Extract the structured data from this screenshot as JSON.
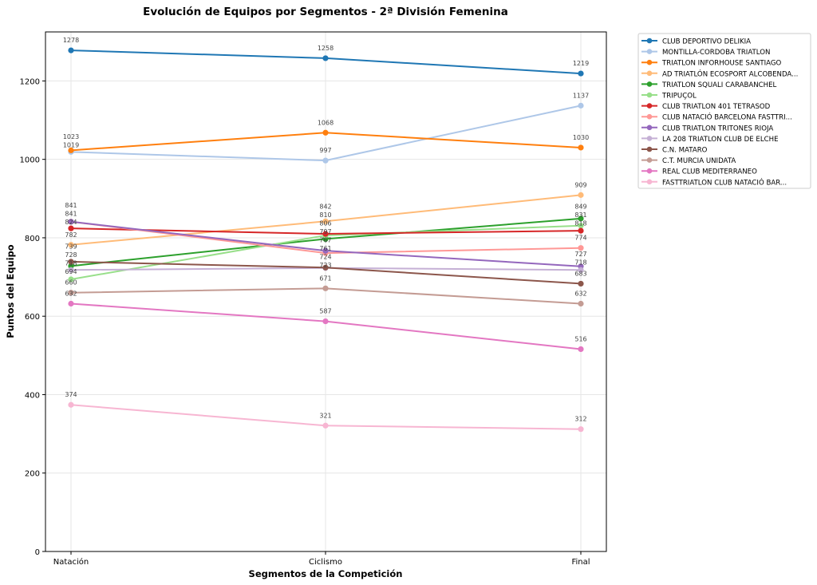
{
  "chart_data": {
    "type": "line",
    "title": "Evolución de Equipos por Segmentos - 2ª División Femenina",
    "xlabel": "Segmentos de la Competición",
    "ylabel": "Puntos del Equipo",
    "categories": [
      "Natación",
      "Ciclismo",
      "Final"
    ],
    "ylim": [
      0,
      1325
    ],
    "yticks": [
      0,
      200,
      400,
      600,
      800,
      1000,
      1200
    ],
    "grid": true,
    "legend_placement": "outside-top-right",
    "series": [
      {
        "name": "CLUB DEPORTIVO DELIKIA",
        "color": "#1f77b4",
        "values": [
          1278,
          1258,
          1219
        ]
      },
      {
        "name": "MONTILLA-CORDOBA TRIATLON",
        "color": "#aec7e8",
        "values": [
          1019,
          997,
          1137
        ]
      },
      {
        "name": "TRIATLON INFORHOUSE SANTIAGO",
        "color": "#ff7f0e",
        "values": [
          1023,
          1068,
          1030
        ]
      },
      {
        "name": "AD TRIATLÓN ECOSPORT ALCOBENDA...",
        "color": "#ffbb78",
        "values": [
          782,
          842,
          909
        ]
      },
      {
        "name": "TRIATLON SQUALI CARABANCHEL",
        "color": "#2ca02c",
        "values": [
          728,
          797,
          849
        ]
      },
      {
        "name": "TRIPUÇOL",
        "color": "#98df8a",
        "values": [
          694,
          806,
          831
        ]
      },
      {
        "name": "CLUB TRIATLON 401 TETRASOD",
        "color": "#d62728",
        "values": [
          824,
          810,
          818
        ]
      },
      {
        "name": "CLUB NATACIÓ BARCELONA FASTTRI...",
        "color": "#ff9896",
        "values": [
          841,
          761,
          774
        ]
      },
      {
        "name": "CLUB TRIATLON TRITONES RIOJA",
        "color": "#9467bd",
        "values": [
          841,
          767,
          727
        ]
      },
      {
        "name": "LA 208 TRIATLON CLUB DE ELCHE",
        "color": "#c5b0d5",
        "values": [
          718,
          723,
          718
        ]
      },
      {
        "name": "C.N. MATARO",
        "color": "#8c564b",
        "values": [
          739,
          724,
          683
        ]
      },
      {
        "name": "C.T.  MURCIA UNIDATA",
        "color": "#c49c94",
        "values": [
          660,
          671,
          632
        ]
      },
      {
        "name": "REAL CLUB MEDITERRANEO",
        "color": "#e377c2",
        "values": [
          632,
          587,
          516
        ]
      },
      {
        "name": "FASTTRIATLON  CLUB NATACIÓ BAR...",
        "color": "#f7b6d2",
        "values": [
          374,
          321,
          312
        ]
      }
    ]
  }
}
